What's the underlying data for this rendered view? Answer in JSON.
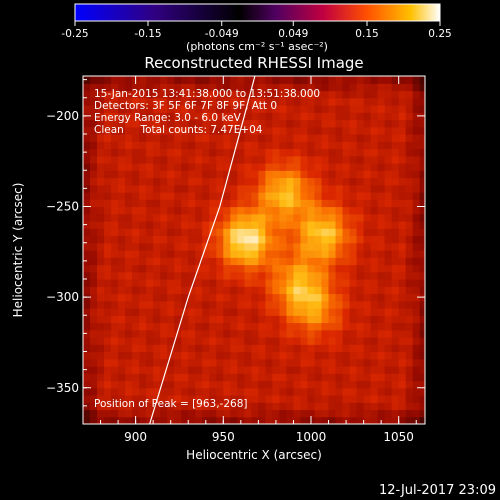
{
  "chart_data": {
    "type": "heatmap",
    "title": "Reconstructed RHESSI Image",
    "xlabel": "Heliocentric X (arcsec)",
    "ylabel": "Heliocentric Y (arcsec)",
    "xlim": [
      870,
      1065
    ],
    "ylim": [
      -370,
      -178
    ],
    "x_ticks": [
      900,
      950,
      1000,
      1050
    ],
    "y_ticks": [
      -200,
      -250,
      -300,
      -350
    ],
    "colorbar": {
      "min": -0.25,
      "max": 0.25,
      "ticks": [
        "-0.25",
        "-0.15",
        "-0.049",
        "0.049",
        "0.15",
        "0.25"
      ],
      "unit_label": "(photons cm⁻² s⁻¹ asec⁻²)",
      "colors": [
        "#0000ff",
        "#400090",
        "#000000",
        "#600080",
        "#d00030",
        "#ff6000",
        "#ffd000",
        "#ffffff"
      ]
    },
    "annotations": [
      "15-Jan-2015 13:41:38.000 to 13:51:38.000",
      "Detectors: 3F 5F 6F 7F 8F 9F, Att 0",
      "Energy Range: 3.0 - 6.0 keV",
      "Clean     Total counts: 7.47E+04"
    ],
    "peak_label": "Position of Peak = [963,-268]",
    "sources": [
      {
        "x": 963,
        "y": -268,
        "amp": 1.0
      },
      {
        "x": 985,
        "y": -242,
        "amp": 0.75
      },
      {
        "x": 1007,
        "y": -265,
        "amp": 0.8
      },
      {
        "x": 992,
        "y": -292,
        "amp": 0.6
      },
      {
        "x": 1002,
        "y": -306,
        "amp": 0.55
      }
    ],
    "limb_curve": [
      [
        908,
        -370
      ],
      [
        930,
        -300
      ],
      [
        948,
        -250
      ],
      [
        962,
        -200
      ],
      [
        968,
        -178
      ]
    ]
  },
  "footer": {
    "date": "12-Jul-2017 23:09"
  }
}
